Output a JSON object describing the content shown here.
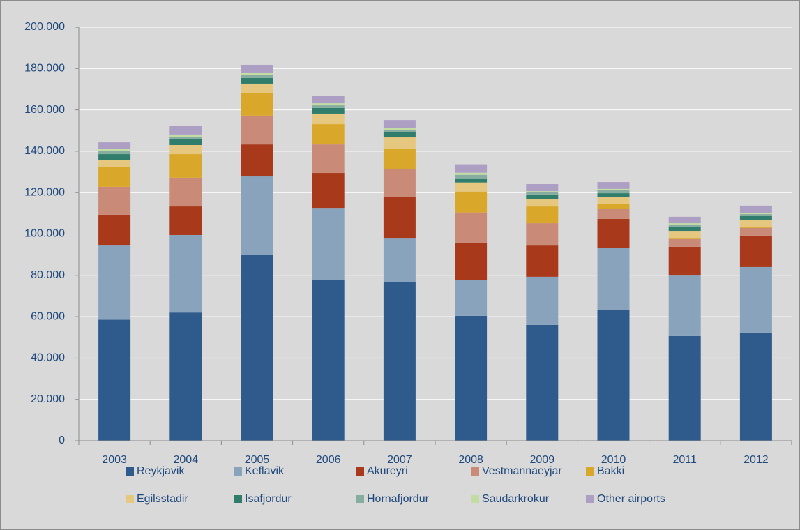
{
  "chart_data": {
    "type": "stacked_bar",
    "categories": [
      "2003",
      "2004",
      "2005",
      "2006",
      "2007",
      "2008",
      "2009",
      "2010",
      "2011",
      "2012"
    ],
    "series": [
      {
        "name": "Reykjavik",
        "color": "#2e5a8c",
        "values": [
          58500,
          62000,
          90000,
          77600,
          76600,
          60400,
          56000,
          63100,
          50600,
          52300
        ]
      },
      {
        "name": "Keflavik",
        "color": "#8aa3bd",
        "values": [
          35900,
          37500,
          37800,
          35000,
          21500,
          17400,
          23300,
          30300,
          29300,
          31700
        ]
      },
      {
        "name": "Akureyri",
        "color": "#a8391a",
        "values": [
          14900,
          13800,
          15500,
          16900,
          19900,
          18000,
          15100,
          13900,
          13900,
          15200
        ]
      },
      {
        "name": "Vestmannaeyjar",
        "color": "#c98a78",
        "values": [
          13500,
          13900,
          13900,
          13800,
          13200,
          14600,
          10800,
          5000,
          3700,
          3700
        ]
      },
      {
        "name": "Bakki",
        "color": "#d9a82b",
        "values": [
          9700,
          11400,
          10800,
          9800,
          9800,
          10100,
          8100,
          2400,
          600,
          600
        ]
      },
      {
        "name": "Egilsstadir",
        "color": "#e6c77f",
        "values": [
          3400,
          4400,
          4700,
          5100,
          5700,
          4400,
          3700,
          3000,
          3400,
          3100
        ]
      },
      {
        "name": "Isafjordur",
        "color": "#2f7d6a",
        "values": [
          2700,
          2700,
          2700,
          2700,
          2400,
          2000,
          2100,
          2000,
          2000,
          2000
        ]
      },
      {
        "name": "Hornafjordur",
        "color": "#86ad9f",
        "values": [
          1400,
          1300,
          1700,
          1300,
          1000,
          1700,
          1000,
          1400,
          1100,
          1000
        ]
      },
      {
        "name": "Saudarkrokur",
        "color": "#c3dca4",
        "values": [
          1000,
          1100,
          1000,
          1000,
          1000,
          1000,
          600,
          700,
          600,
          700
        ]
      },
      {
        "name": "Other airports",
        "color": "#ad9ec4",
        "values": [
          3300,
          4000,
          3700,
          3700,
          4000,
          4100,
          3400,
          3300,
          3100,
          3400
        ]
      }
    ],
    "ylim": [
      0,
      200000
    ],
    "yticks": [
      0,
      {
        "value": 20000,
        "label": "20.000"
      },
      {
        "value": 40000,
        "label": "40.000"
      },
      {
        "value": 60000,
        "label": "60.000"
      },
      {
        "value": 80000,
        "label": "80.000"
      },
      {
        "value": 100000,
        "label": "100.000"
      },
      {
        "value": 120000,
        "label": "120.000"
      },
      {
        "value": 140000,
        "label": "140.000"
      },
      {
        "value": 160000,
        "label": "160.000"
      },
      {
        "value": 180000,
        "label": "180.000"
      },
      {
        "value": 200000,
        "label": "200.000"
      }
    ],
    "grid": true
  }
}
